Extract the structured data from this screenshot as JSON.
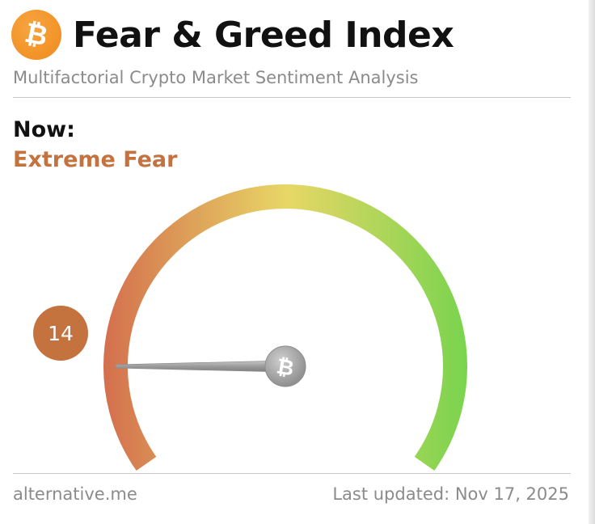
{
  "header": {
    "logo_icon": "bitcoin-icon",
    "title": "Fear & Greed Index",
    "subtitle": "Multifactorial Crypto Market Sentiment Analysis"
  },
  "status": {
    "label": "Now:",
    "classification": "Extreme Fear",
    "classification_color": "#c4733f"
  },
  "gauge": {
    "min": 0,
    "max": 100,
    "value": 14,
    "value_text": "14",
    "badge_color": "#c4733f",
    "hub_icon": "bitcoin-icon",
    "colors": {
      "fear": "#d4704e",
      "neutral": "#e8d766",
      "greed": "#78d44e"
    }
  },
  "footer": {
    "source": "alternative.me",
    "updated": "Last updated: Nov 17, 2025"
  }
}
